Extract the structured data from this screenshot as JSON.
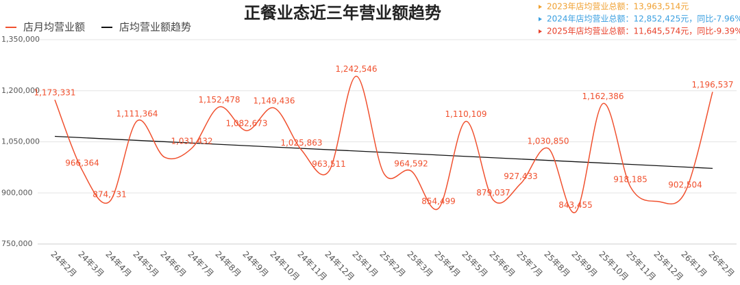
{
  "chart_data": {
    "type": "line",
    "title": "正餐业态近三年营业额趋势",
    "annotations": [
      {
        "text": "2023年店均营业总额：13,963,514元",
        "color": "#f0a030"
      },
      {
        "text": "2024年店均营业总额：12,852,425元，同比-7.96%",
        "color": "#3a9fe0"
      },
      {
        "text": "2025年店均营业总额：11,645,574元，同比-9.39%",
        "color": "#e8402a"
      }
    ],
    "categories": [
      "24年2月",
      "24年3月",
      "24年4月",
      "24年5月",
      "24年6月",
      "24年7月",
      "24年8月",
      "24年9月",
      "24年10月",
      "24年11月",
      "24年12月",
      "25年1月",
      "25年2月",
      "25年3月",
      "25年4月",
      "25年5月",
      "25年6月",
      "25年7月",
      "25年8月",
      "25年9月",
      "25年10月",
      "25年11月",
      "25年12月",
      "26年1月",
      "26年2月"
    ],
    "series": [
      {
        "name": "店月均营业额",
        "color": "#f0502e",
        "values": [
          1173331,
          966364,
          874731,
          1111364,
          1005000,
          1031432,
          1152478,
          1082673,
          1149436,
          1025863,
          963511,
          1242546,
          958000,
          964592,
          854499,
          1110109,
          879037,
          927433,
          1030850,
          843455,
          1162386,
          918185,
          875000,
          902504,
          1196537
        ],
        "value_labels": [
          "1,173,331",
          "966,364",
          "874,731",
          "1,111,364",
          null,
          "1,031,432",
          "1,152,478",
          "1,082,673",
          "1,149,436",
          "1,025,863",
          "963,511",
          "1,242,546",
          null,
          "964,592",
          "854,499",
          "1,110,109",
          "879,037",
          "927,433",
          "1,030,850",
          "843,455",
          "1,162,386",
          "918,185",
          null,
          "902,504",
          "1,196,537"
        ]
      }
    ],
    "trend": {
      "name": "店均营业额趋势",
      "color": "#111111",
      "values": [
        1066000,
        972000
      ]
    },
    "ylim": [
      750000,
      1350000
    ],
    "yticks": [
      {
        "value": 750000,
        "label": "750,000"
      },
      {
        "value": 900000,
        "label": "900,000"
      },
      {
        "value": 1050000,
        "label": "1,050,000"
      },
      {
        "value": 1200000,
        "label": "1,200,000"
      },
      {
        "value": 1350000,
        "label": "1,350,000"
      }
    ],
    "grid": true
  }
}
